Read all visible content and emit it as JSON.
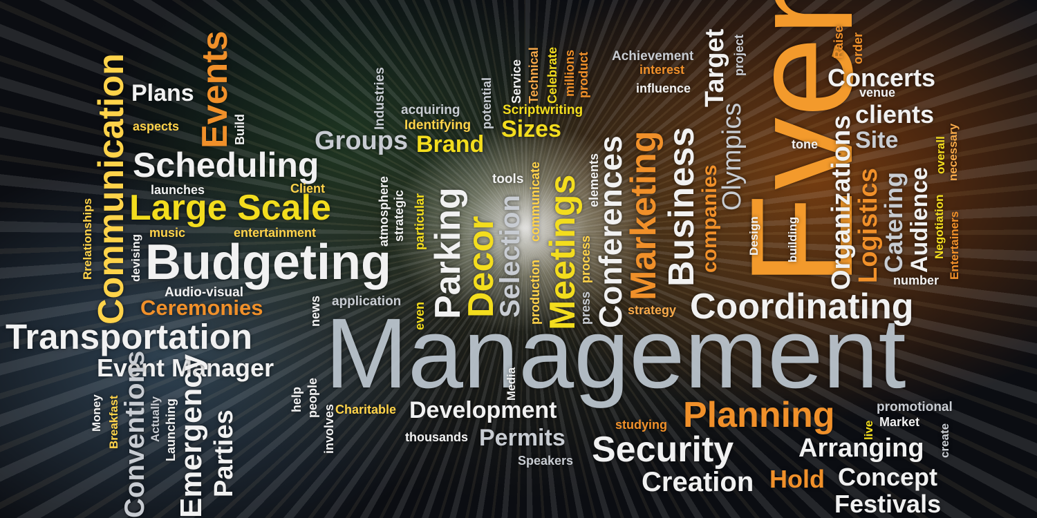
{
  "words": {
    "management": "Management",
    "event": "Event",
    "transportation": "Transportation",
    "budgeting": "Budgeting",
    "coordinating": "Coordinating",
    "scheduling": "Scheduling",
    "large_scale": "Large Scale",
    "communication": "Communication",
    "events": "Events",
    "plans": "Plans",
    "aspects": "aspects",
    "build": "Build",
    "groups": "Groups",
    "brand": "Brand",
    "sizes": "Sizes",
    "acquiring": "acquiring",
    "identifying": "Identifying",
    "industries": "Industries",
    "potential": "potential",
    "service": "Service",
    "technical": "Technical",
    "celebrate": "Celebrate",
    "millions": "millions",
    "product": "product",
    "scriptwriting": "Scriptwriting",
    "achievement": "Achievement",
    "interest": "interest",
    "influence": "influence",
    "target": "Target",
    "project": "project",
    "raise": "Raise",
    "order": "order",
    "concerts": "Concerts",
    "venue": "venue",
    "clients": "clients",
    "site": "Site",
    "tone": "tone",
    "olympics": "Olympics",
    "companies": "companies",
    "business": "Business",
    "marketing": "Marketing",
    "conferences": "Conferences",
    "meetings": "Meetings",
    "selection": "Selection",
    "decor": "Decor",
    "parking": "Parking",
    "tools": "tools",
    "communicate": "communicate",
    "production": "production",
    "press": "press",
    "process": "process",
    "elements": "elements",
    "organizations": "Organizations",
    "logistics": "Logistics",
    "catering": "Catering",
    "audience": "Audience",
    "negotiation": "Negotiation",
    "overall": "overall",
    "necessary": "necessary",
    "entertainers": "Entertainers",
    "number": "number",
    "design": "Design",
    "building": "building",
    "strategy": "strategy",
    "launches": "launches",
    "client": "Client",
    "music": "music",
    "entertainment": "entertainment",
    "relationships": "Rrelationships",
    "devising": "devising",
    "atmosphere": "atmosphere",
    "strategic": "strategic",
    "particular": "particular",
    "even": "even",
    "audio_visual": "Audio-visual",
    "ceremonies": "Ceremonies",
    "news": "news",
    "application": "application",
    "event_manager": "Event Manager",
    "money": "Money",
    "breakfast": "Breakfast",
    "conventions": "Conventions",
    "actually": "Actually",
    "launching": "Launching",
    "emergency": "Emergency",
    "parties": "Parties",
    "help": "help",
    "people": "people",
    "involves": "involves",
    "charitable": "Charitable",
    "media": "Media",
    "development": "Development",
    "thousands": "thousands",
    "permits": "Permits",
    "speakers": "Speakers",
    "studying": "studying",
    "planning": "Planning",
    "security": "Security",
    "creation": "Creation",
    "hold": "Hold",
    "live": "live",
    "promotional": "promotional",
    "market": "Market",
    "create": "create",
    "arranging": "Arranging",
    "concept": "Concept",
    "festivals": "Festivals"
  },
  "colors": {
    "white": "#f1f1f1",
    "grey": "#c8ccd2",
    "yellow": "#f3dd1e",
    "orange": "#f0902a"
  }
}
